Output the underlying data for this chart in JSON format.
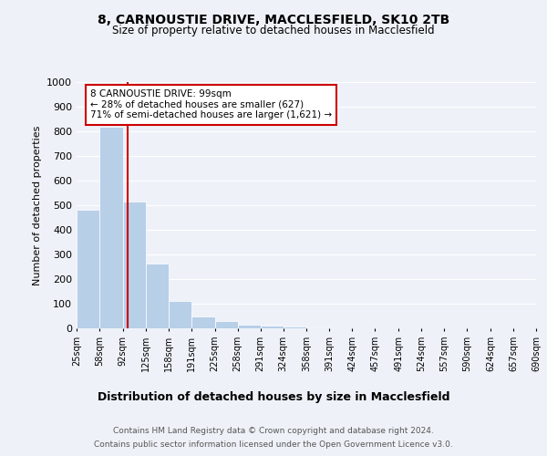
{
  "title1": "8, CARNOUSTIE DRIVE, MACCLESFIELD, SK10 2TB",
  "title2": "Size of property relative to detached houses in Macclesfield",
  "xlabel": "Distribution of detached houses by size in Macclesfield",
  "ylabel": "Number of detached properties",
  "footnote1": "Contains HM Land Registry data © Crown copyright and database right 2024.",
  "footnote2": "Contains public sector information licensed under the Open Government Licence v3.0.",
  "annotation_line1": "8 CARNOUSTIE DRIVE: 99sqm",
  "annotation_line2": "← 28% of detached houses are smaller (627)",
  "annotation_line3": "71% of semi-detached houses are larger (1,621) →",
  "bar_edges": [
    25,
    58,
    92,
    125,
    158,
    191,
    225,
    258,
    291,
    324,
    358,
    391,
    424,
    457,
    491,
    524,
    557,
    590,
    624,
    657,
    690
  ],
  "bar_heights": [
    480,
    820,
    515,
    263,
    110,
    50,
    30,
    15,
    10,
    7,
    5,
    0,
    0,
    0,
    0,
    0,
    0,
    0,
    0,
    0
  ],
  "bar_color": "#b8cfe8",
  "bar_edge_color": "#ffffff",
  "red_line_x": 99,
  "ylim": [
    0,
    1000
  ],
  "yticks": [
    0,
    100,
    200,
    300,
    400,
    500,
    600,
    700,
    800,
    900,
    1000
  ],
  "bg_color": "#eef2f8",
  "plot_bg_color": "#eef2f8",
  "annotation_box_color": "#ffffff",
  "annotation_box_edge": "#cc0000",
  "red_line_color": "#cc0000"
}
